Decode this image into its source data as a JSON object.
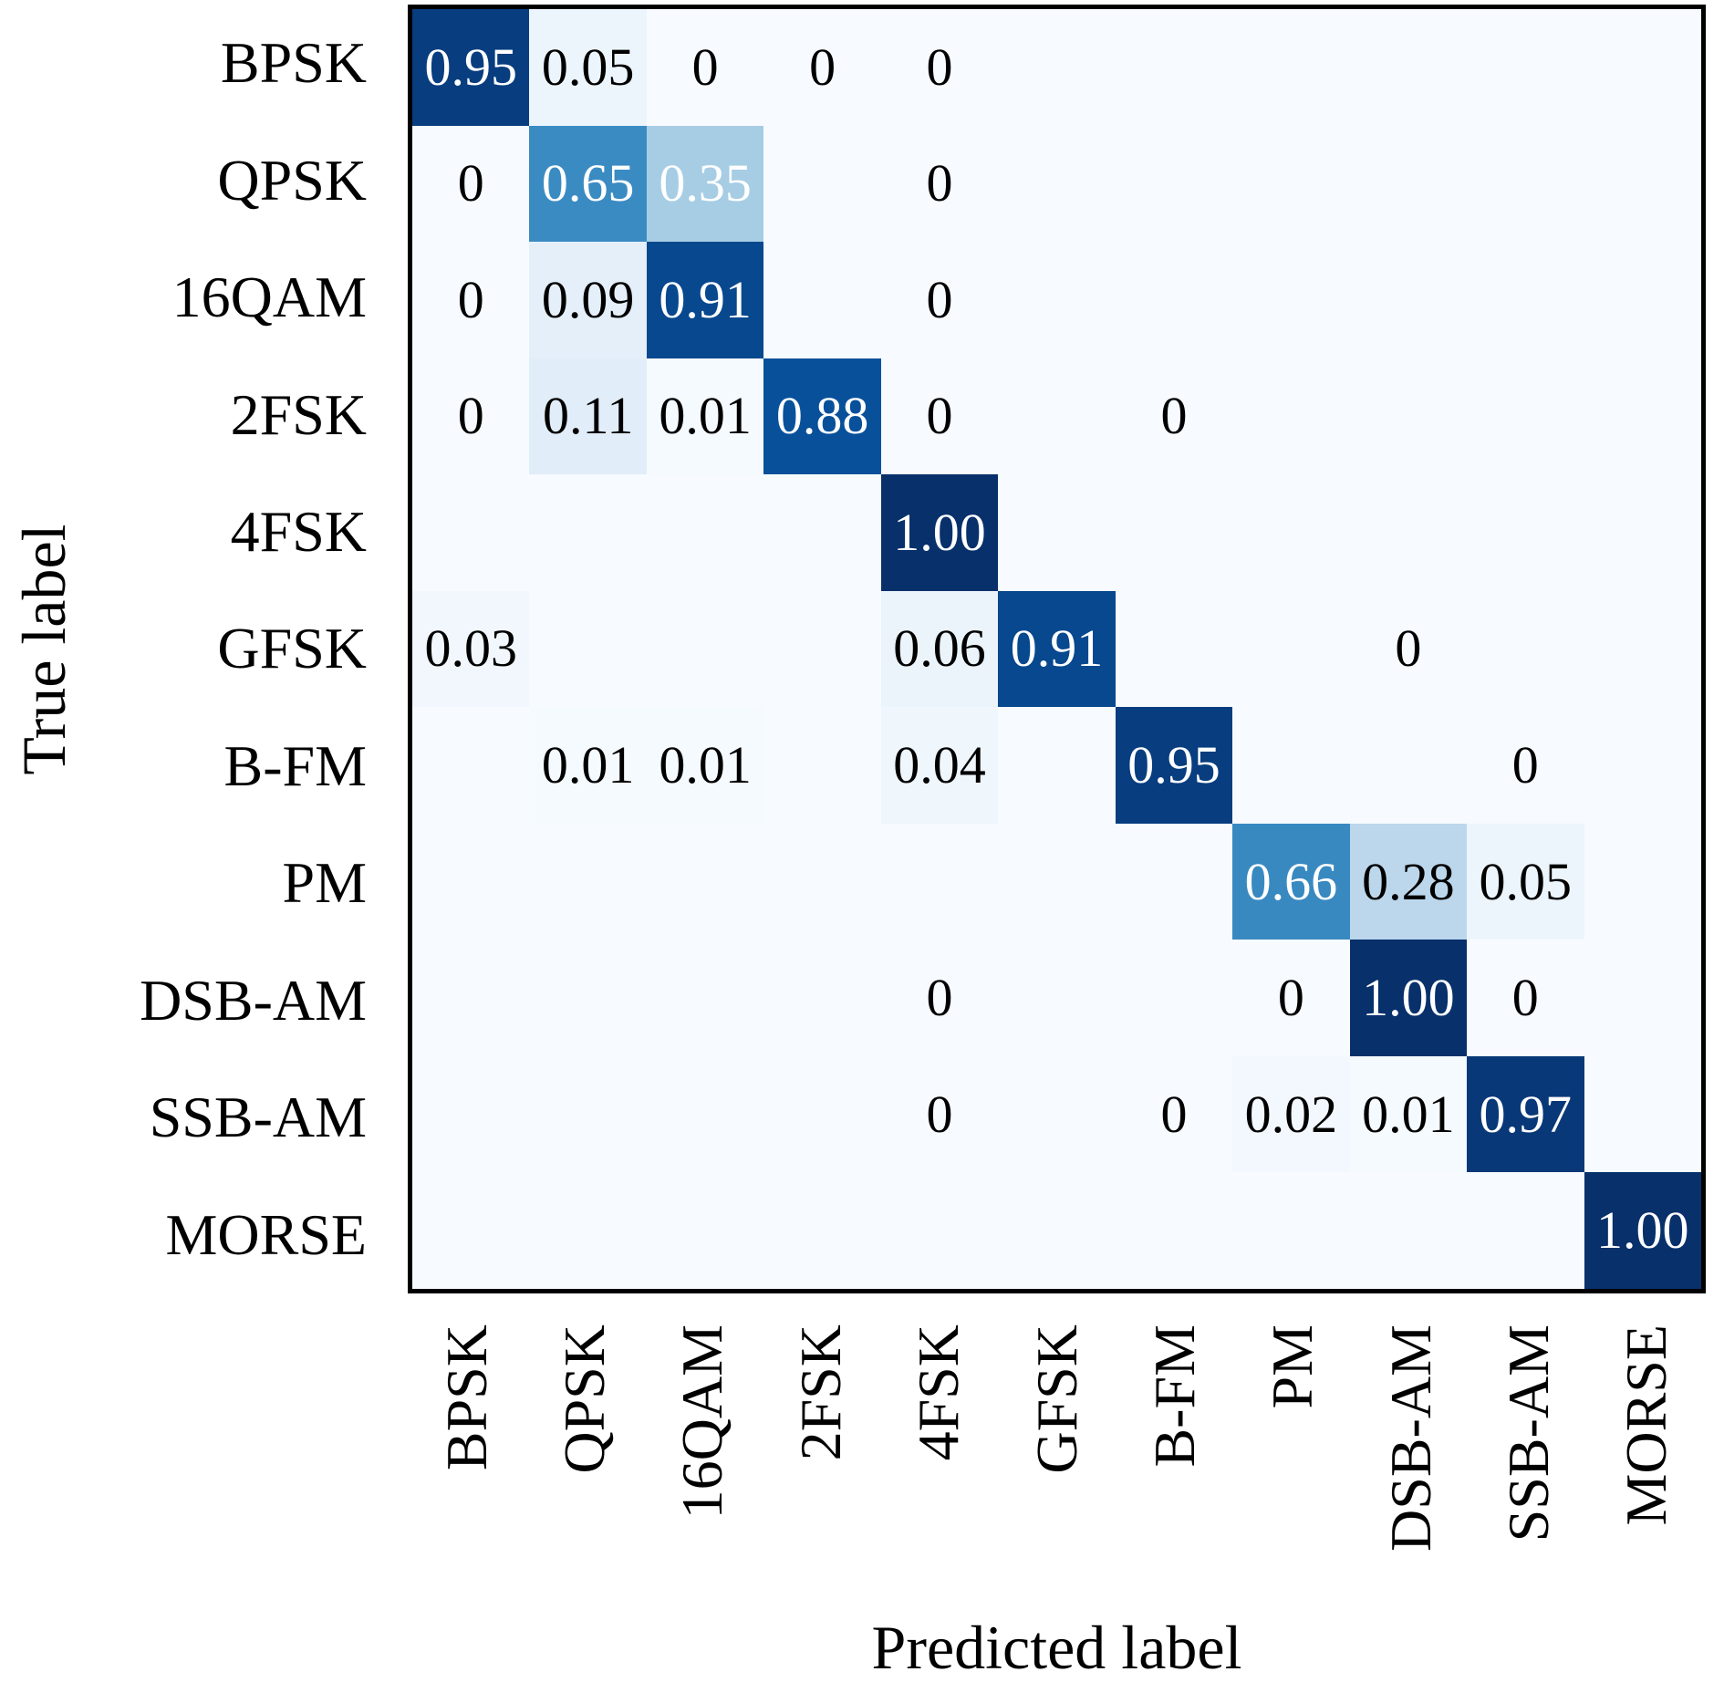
{
  "chart_data": {
    "type": "heatmap",
    "title": "",
    "xlabel": "Predicted label",
    "ylabel": "True label",
    "categories": [
      "BPSK",
      "QPSK",
      "16QAM",
      "2FSK",
      "4FSK",
      "GFSK",
      "B-FM",
      "PM",
      "DSB-AM",
      "SSB-AM",
      "MORSE"
    ],
    "x_tick_labels": [
      "BPSK",
      "QPSK",
      "16QAM",
      "2FSK",
      "4FSK",
      "GFSK",
      "B-FM",
      "PM",
      "DSB-AM",
      "SSB-AM",
      "MORSE"
    ],
    "y_tick_labels": [
      "BPSK",
      "QPSK",
      "16QAM",
      "2FSK",
      "4FSK",
      "GFSK",
      "B-FM",
      "PM",
      "DSB-AM",
      "SSB-AM",
      "MORSE"
    ],
    "cells": [
      [
        "0.95",
        "0.05",
        "0",
        "0",
        "0",
        "",
        "",
        "",
        "",
        "",
        ""
      ],
      [
        "0",
        "0.65",
        "0.35",
        "",
        "0",
        "",
        "",
        "",
        "",
        "",
        ""
      ],
      [
        "0",
        "0.09",
        "0.91",
        "",
        "0",
        "",
        "",
        "",
        "",
        "",
        ""
      ],
      [
        "0",
        "0.11",
        "0.01",
        "0.88",
        "0",
        "",
        "0",
        "",
        "",
        "",
        ""
      ],
      [
        "",
        "",
        "",
        "",
        "1.00",
        "",
        "",
        "",
        "",
        "",
        ""
      ],
      [
        "0.03",
        "",
        "",
        "",
        "0.06",
        "0.91",
        "",
        "",
        "0",
        "",
        ""
      ],
      [
        "",
        "0.01",
        "0.01",
        "",
        "0.04",
        "",
        "0.95",
        "",
        "",
        "0",
        ""
      ],
      [
        "",
        "",
        "",
        "",
        "",
        "",
        "",
        "0.66",
        "0.28",
        "0.05",
        ""
      ],
      [
        "",
        "",
        "",
        "",
        "0",
        "",
        "",
        "0",
        "1.00",
        "0",
        ""
      ],
      [
        "",
        "",
        "",
        "",
        "0",
        "",
        "0",
        "0.02",
        "0.01",
        "0.97",
        ""
      ],
      [
        "",
        "",
        "",
        "",
        "",
        "",
        "",
        "",
        "",
        "",
        "1.00"
      ]
    ],
    "value_range": [
      0,
      1
    ],
    "grid": false,
    "legend": "none",
    "colormap": {
      "name": "Blues",
      "stops": [
        "#f7fbff",
        "#deebf7",
        "#c6dbef",
        "#9ecae1",
        "#6baed6",
        "#4292c6",
        "#2171b5",
        "#08519c",
        "#08306b"
      ]
    },
    "annotation_colors": {
      "dark_text": "#000000",
      "light_text": "#ffffff",
      "light_text_threshold": 0.3
    },
    "border_color": "#000000"
  }
}
